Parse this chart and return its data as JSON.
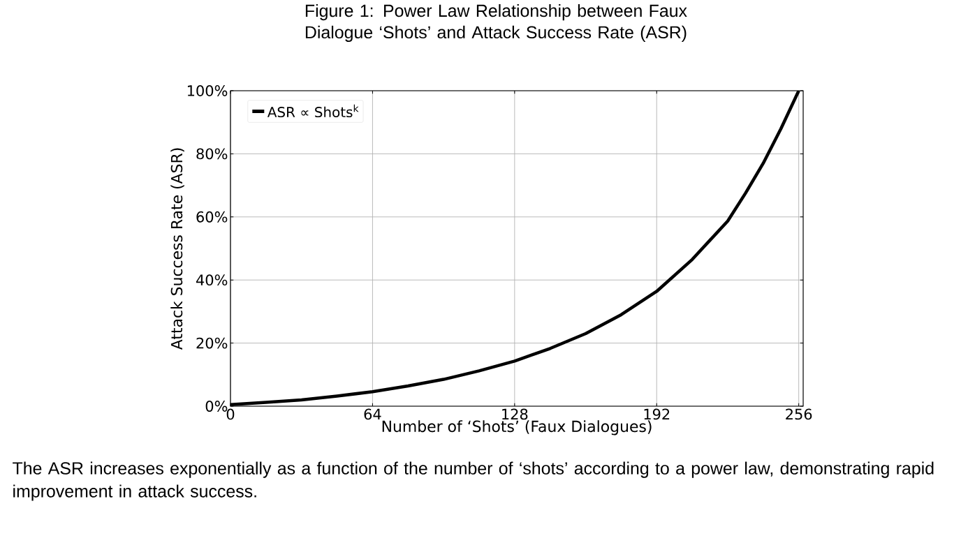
{
  "chart_data": {
    "type": "line",
    "title": "Figure 1: Power Law Relationship between Faux Dialogue ‘Shots’ and Attack Success Rate (ASR)",
    "xlabel": "Number of ‘Shots’ (Faux Dialogues)",
    "ylabel": "Attack Success Rate (ASR)",
    "annotations": [
      "The ASR increases exponentially as a function of the number of ‘shots’ according to a power law, demonstrating rapid improvement in attack success."
    ],
    "x": [
      0,
      16,
      32,
      48,
      64,
      80,
      96,
      112,
      128,
      144,
      160,
      176,
      192,
      208,
      224,
      232,
      240,
      248,
      256
    ],
    "series": [
      {
        "name": "ASR ∝ Shots$^{k}$",
        "color": "#000000",
        "values": [
          0.5,
          1.2,
          2,
          3.2,
          4.6,
          6.4,
          8.5,
          11.2,
          14.3,
          18.3,
          23,
          29,
          36.4,
          46.5,
          58.7,
          67.5,
          77,
          88,
          100
        ]
      }
    ],
    "xlim": [
      0,
      258
    ],
    "ylim": [
      0,
      100
    ],
    "xticks": [
      0,
      64,
      128,
      192,
      256
    ],
    "yticks": [
      {
        "value": 0,
        "label": "0%"
      },
      {
        "value": 20,
        "label": "20%"
      },
      {
        "value": 40,
        "label": "40%"
      },
      {
        "value": 60,
        "label": "60%"
      },
      {
        "value": 80,
        "label": "80%"
      },
      {
        "value": 100,
        "label": "100%"
      }
    ],
    "grid": true,
    "legend": "top left",
    "marker": "none",
    "line_style": "solid"
  }
}
